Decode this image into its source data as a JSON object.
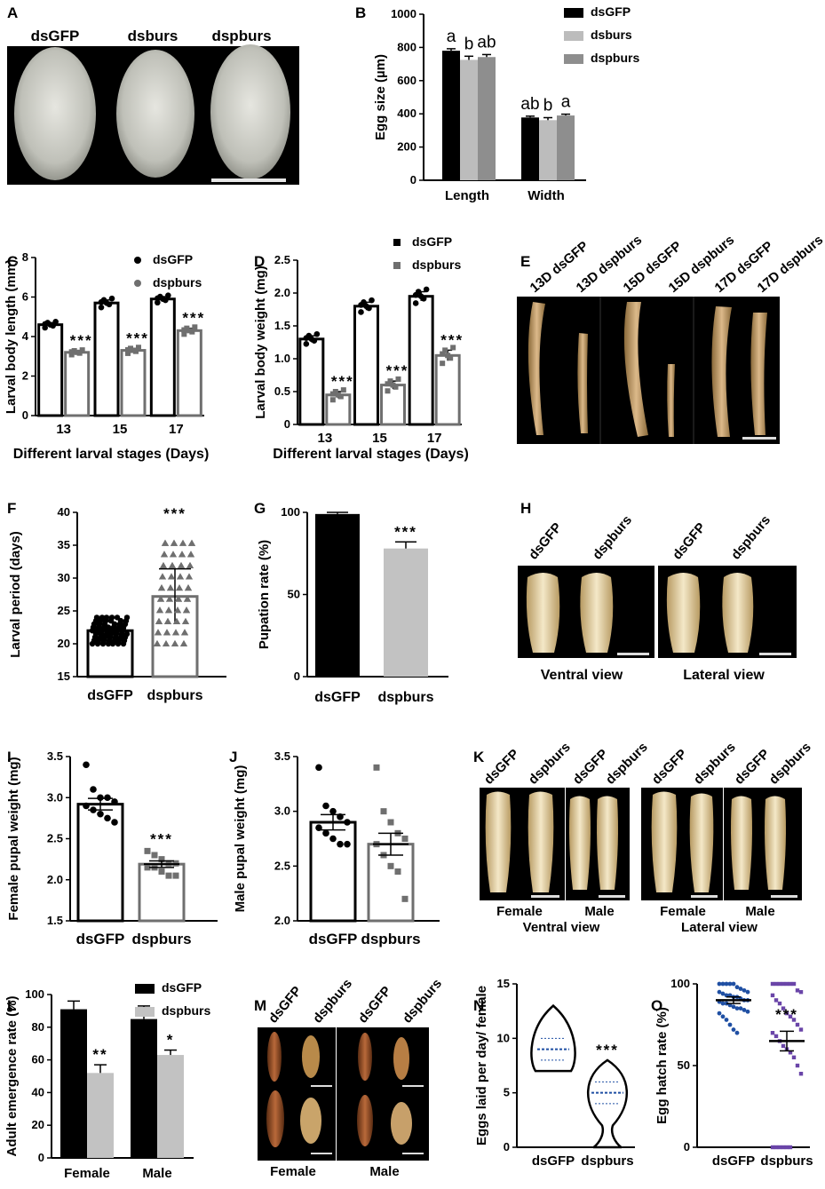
{
  "panel_letters": [
    "A",
    "B",
    "C",
    "D",
    "E",
    "F",
    "G",
    "H",
    "I",
    "J",
    "K",
    "L",
    "M",
    "N",
    "O"
  ],
  "photos": {
    "A": {
      "labels": [
        "dsGFP",
        "dsburs",
        "dspburs"
      ]
    },
    "E": {
      "labels": [
        "13D dsGFP",
        "13D dspburs",
        "15D dsGFP",
        "15D dspburs",
        "17D dsGFP",
        "17D dspburs"
      ]
    },
    "H": {
      "labels": [
        "dsGFP",
        "dspburs",
        "dsGFP",
        "dspburs"
      ],
      "captions": [
        "Ventral view",
        "Lateral view"
      ]
    },
    "K": {
      "labels": [
        "dsGFP",
        "dspburs",
        "dsGFP",
        "dspburs",
        "dsGFP",
        "dspburs",
        "dsGFP",
        "dspburs"
      ],
      "captions": [
        "Female",
        "Male",
        "Ventral view",
        "Female",
        "Male",
        "Lateral view"
      ]
    },
    "M": {
      "labels": [
        "dsGFP",
        "dspburs",
        "dsGFP",
        "dspburs"
      ],
      "captions": [
        "Female",
        "Male"
      ]
    }
  },
  "colors": {
    "dsGFP": "#000000",
    "dsburs": "#bcbcbc",
    "dspburs": "#8e8e8e",
    "dspburs_light": "#c2c2c2",
    "gray_marker": "#6f6f6f",
    "blue": "#1f4fa3",
    "purple": "#6a45a8"
  },
  "chart_data": [
    {
      "panel": "B",
      "type": "bar",
      "categories": [
        "Length",
        "Width"
      ],
      "ylabel": "Egg size (µm)",
      "xlabel": "",
      "ylim": [
        0,
        1000
      ],
      "yticks": [
        "0",
        "200",
        "400",
        "600",
        "800",
        "1000"
      ],
      "series": [
        {
          "name": "dsGFP",
          "values": [
            780,
            378
          ],
          "errors": [
            12,
            8
          ],
          "letters": [
            "a",
            "ab"
          ]
        },
        {
          "name": "dsburs",
          "values": [
            725,
            362
          ],
          "errors": [
            22,
            15
          ],
          "letters": [
            "b",
            "b"
          ]
        },
        {
          "name": "dspburs",
          "values": [
            742,
            390
          ],
          "errors": [
            15,
            8
          ],
          "letters": [
            "ab",
            "a"
          ]
        }
      ],
      "legend": "top-right"
    },
    {
      "panel": "C",
      "type": "bar",
      "categories": [
        "13",
        "15",
        "17"
      ],
      "ylabel": "Larval body length (mm)",
      "xlabel": "Different larval stages (Days)",
      "ylim": [
        0,
        8
      ],
      "yticks": [
        "0",
        "2",
        "4",
        "6",
        "8"
      ],
      "series": [
        {
          "name": "dsGFP",
          "values": [
            4.6,
            5.7,
            5.9
          ],
          "errors": [
            0.1,
            0.15,
            0.12
          ]
        },
        {
          "name": "dspburs",
          "values": [
            3.2,
            3.3,
            4.3
          ],
          "errors": [
            0.08,
            0.1,
            0.12
          ]
        }
      ],
      "significance": [
        "***",
        "***",
        "***"
      ],
      "legend": "top-right"
    },
    {
      "panel": "D",
      "type": "bar",
      "categories": [
        "13",
        "15",
        "17"
      ],
      "ylabel": "Larval body weight (mg)",
      "xlabel": "Different larval stages (Days)",
      "ylim": [
        0,
        2.5
      ],
      "yticks": [
        "0",
        "0.5",
        "1.0",
        "1.5",
        "2.0",
        "2.5"
      ],
      "series": [
        {
          "name": "dsGFP",
          "values": [
            1.3,
            1.8,
            1.95
          ],
          "errors": [
            0.05,
            0.06,
            0.07
          ]
        },
        {
          "name": "dspburs",
          "values": [
            0.45,
            0.6,
            1.05
          ],
          "errors": [
            0.05,
            0.06,
            0.08
          ]
        }
      ],
      "significance": [
        "***",
        "***",
        "***"
      ],
      "legend": "top-right"
    },
    {
      "panel": "F",
      "type": "bar",
      "categories": [
        "dsGFP",
        "dspburs"
      ],
      "ylabel": "Larval period (days)",
      "xlabel": "",
      "ylim": [
        15,
        40
      ],
      "yticks": [
        "15",
        "20",
        "25",
        "30",
        "35",
        "40"
      ],
      "values": [
        22,
        27.2
      ],
      "errors": [
        0.3,
        4.2
      ],
      "significance": [
        "",
        "***"
      ]
    },
    {
      "panel": "G",
      "type": "bar",
      "categories": [
        "dsGFP",
        "dspburs"
      ],
      "ylabel": "Pupation rate (%)",
      "xlabel": "",
      "ylim": [
        0,
        100
      ],
      "yticks": [
        "0",
        "50",
        "100"
      ],
      "values": [
        99,
        78
      ],
      "errors": [
        1,
        4
      ],
      "significance": [
        "",
        "***"
      ]
    },
    {
      "panel": "I",
      "type": "bar",
      "categories": [
        "dsGFP",
        "dspburs"
      ],
      "ylabel": "Female pupal weight (mg)",
      "xlabel": "",
      "ylim": [
        1.5,
        3.5
      ],
      "yticks": [
        "1.5",
        "2.0",
        "2.5",
        "3.0",
        "3.5"
      ],
      "values": [
        2.92,
        2.19
      ],
      "errors": [
        0.07,
        0.04
      ],
      "significance": [
        "",
        "***"
      ],
      "points": [
        [
          3.4,
          3.1,
          3.0,
          3.0,
          2.95,
          2.9,
          2.85,
          2.8,
          2.75,
          2.7
        ],
        [
          2.35,
          2.3,
          2.25,
          2.2,
          2.2,
          2.15,
          2.15,
          2.1,
          2.05,
          2.05
        ]
      ]
    },
    {
      "panel": "J",
      "type": "bar",
      "categories": [
        "dsGFP",
        "dspburs"
      ],
      "ylabel": "Male pupal weight (mg)",
      "xlabel": "",
      "ylim": [
        2.0,
        3.5
      ],
      "yticks": [
        "2.0",
        "2.5",
        "3.0",
        "3.5"
      ],
      "values": [
        2.9,
        2.7
      ],
      "errors": [
        0.07,
        0.1
      ],
      "significance": [
        "",
        ""
      ],
      "points": [
        [
          3.4,
          3.05,
          3.0,
          2.95,
          2.9,
          2.85,
          2.8,
          2.75,
          2.7,
          2.7
        ],
        [
          3.4,
          3.0,
          2.9,
          2.8,
          2.75,
          2.7,
          2.6,
          2.5,
          2.45,
          2.2
        ]
      ]
    },
    {
      "panel": "L",
      "type": "bar",
      "categories": [
        "Female",
        "Male"
      ],
      "ylabel": "Adult emergence rate (%)",
      "xlabel": "",
      "ylim": [
        0,
        100
      ],
      "yticks": [
        "0",
        "20",
        "40",
        "60",
        "80",
        "100"
      ],
      "series": [
        {
          "name": "dsGFP",
          "values": [
            91,
            85
          ],
          "errors": [
            5,
            8
          ]
        },
        {
          "name": "dspburs",
          "values": [
            52,
            63
          ],
          "errors": [
            5,
            3
          ]
        }
      ],
      "significance": [
        "**",
        "*"
      ],
      "legend": "top-right"
    },
    {
      "panel": "N",
      "type": "violin",
      "categories": [
        "dsGFP",
        "dspburs"
      ],
      "ylabel": "Eggs laid per day/ female",
      "xlabel": "",
      "ylim": [
        0,
        15
      ],
      "yticks": [
        "0",
        "5",
        "10",
        "15"
      ],
      "medians": [
        9,
        5
      ],
      "ranges": [
        [
          7,
          13
        ],
        [
          0,
          8
        ]
      ],
      "significance": [
        "",
        "***"
      ]
    },
    {
      "panel": "O",
      "type": "scatter",
      "categories": [
        "dsGFP",
        "dspburs"
      ],
      "ylabel": "Egg hatch rate (%)",
      "xlabel": "",
      "ylim": [
        0,
        100
      ],
      "yticks": [
        "0",
        "50",
        "100"
      ],
      "means": [
        90,
        65
      ],
      "sem": [
        2,
        6
      ],
      "significance": [
        "",
        "***"
      ],
      "points": [
        [
          100,
          100,
          100,
          100,
          100,
          98,
          97,
          96,
          95,
          95,
          94,
          93,
          93,
          92,
          92,
          91,
          90,
          90,
          89,
          88,
          88,
          87,
          86,
          85,
          85,
          84,
          83,
          82,
          80,
          78,
          75,
          72,
          70
        ],
        [
          100,
          100,
          100,
          100,
          100,
          100,
          100,
          96,
          95,
          93,
          90,
          88,
          85,
          82,
          80,
          78,
          75,
          72,
          70,
          68,
          65,
          62,
          60,
          58,
          55,
          50,
          45,
          0,
          0,
          0,
          0,
          0,
          0
        ]
      ]
    }
  ]
}
